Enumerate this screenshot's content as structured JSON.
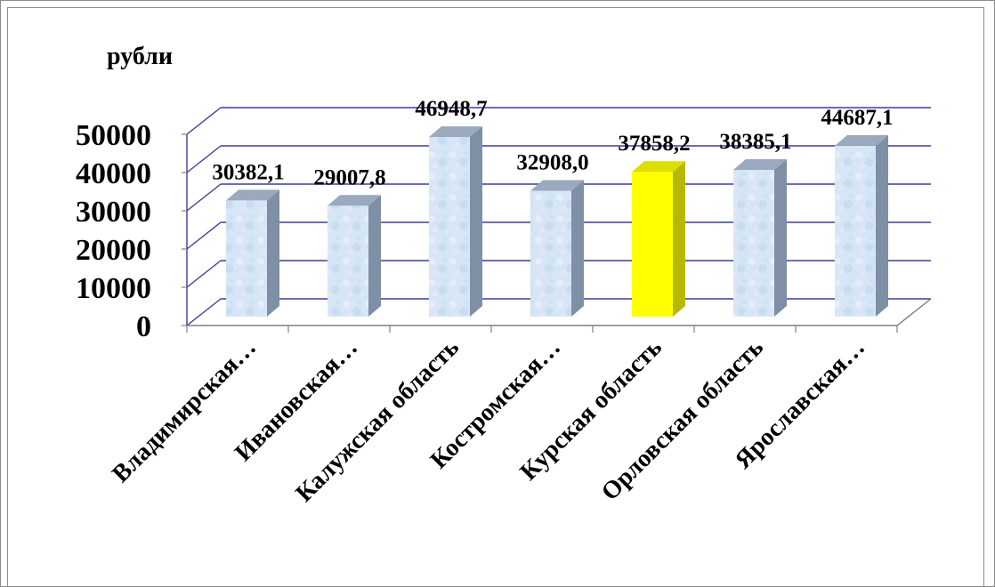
{
  "chart_data": {
    "type": "bar",
    "ylabel": "рубли",
    "ylim": [
      0,
      50000
    ],
    "yticks": [
      "0",
      "10000",
      "20000",
      "30000",
      "40000",
      "50000"
    ],
    "categories": [
      "Владимирская…",
      "Ивановская…",
      "Калужская область",
      "Костромская…",
      "Курская область",
      "Орловская область",
      "Ярославская…"
    ],
    "values": [
      30382.1,
      29007.8,
      46948.7,
      32908.0,
      37858.2,
      38385.1,
      44687.1
    ],
    "data_labels": [
      "30382,1",
      "29007,8",
      "46948,7",
      "32908,0",
      "37858,2",
      "38385,1",
      "44687,1"
    ],
    "highlight_index": 4,
    "colors": {
      "bar_fill": "#cfe2f5",
      "bar_side": "#7f8fa6",
      "bar_top": "#9aa9be",
      "highlight_fill": "#ffff00",
      "highlight_side": "#b8b800",
      "highlight_top": "#dede00",
      "gridline": "#3b3f9c"
    }
  }
}
